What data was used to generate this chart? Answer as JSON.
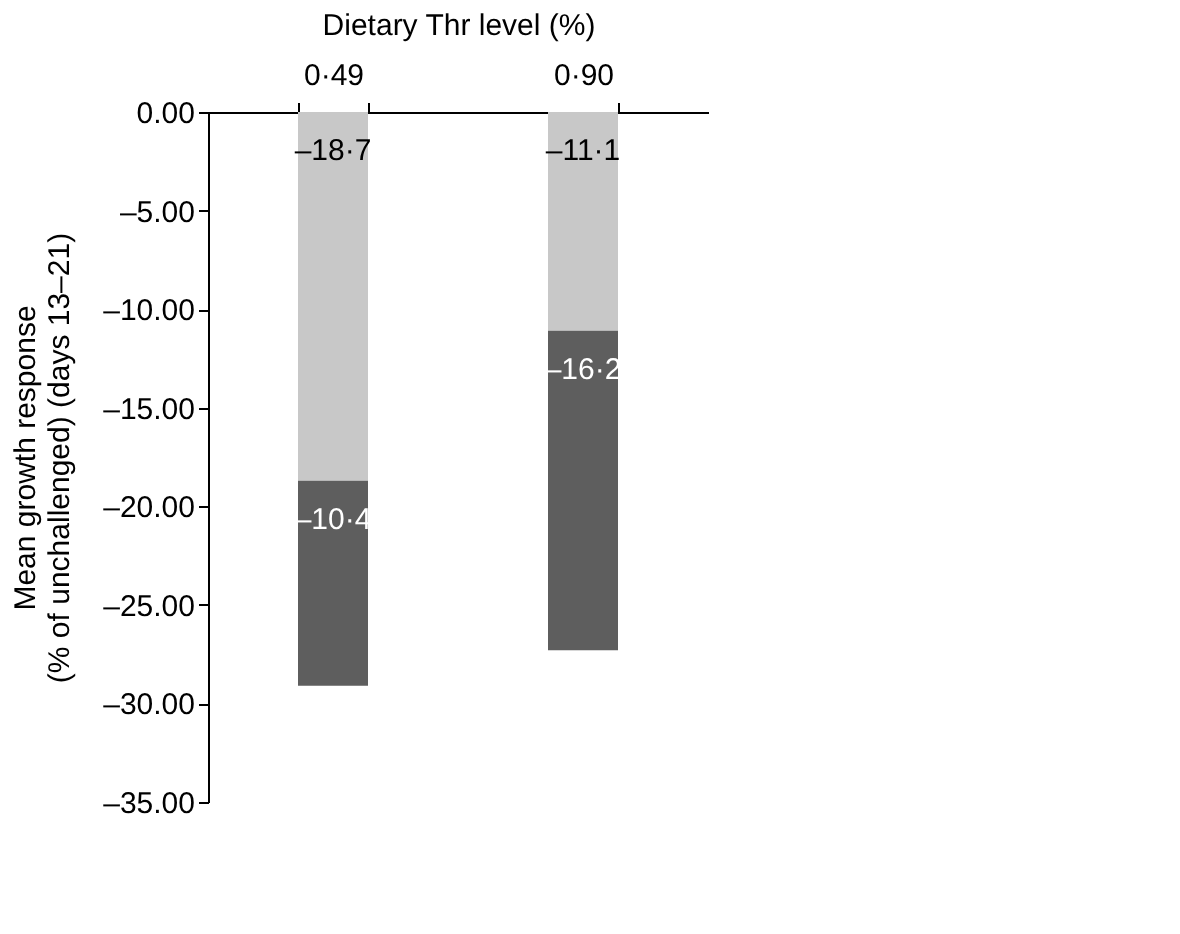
{
  "chart_data": {
    "type": "bar",
    "stacked": true,
    "xlabel": "Dietary Thr level (%)",
    "ylabel": "Mean growth response\n(% of unchallenged) (days 13–21)",
    "categories": [
      "0·49",
      "0·90"
    ],
    "series": [
      {
        "color": "#c8c8c8",
        "values": [
          -18.7,
          -11.1
        ],
        "value_labels": [
          "–18·7",
          "–11·1"
        ]
      },
      {
        "color": "#5e5e5e",
        "values": [
          -10.4,
          -16.2
        ],
        "value_labels": [
          "–10·4",
          "–16·2"
        ]
      }
    ],
    "ylim": [
      -35,
      0
    ],
    "yticks": [
      {
        "value": 0,
        "label": "0.00"
      },
      {
        "value": -5,
        "label": "–5.00"
      },
      {
        "value": -10,
        "label": "–10.00"
      },
      {
        "value": -15,
        "label": "–15.00"
      },
      {
        "value": -20,
        "label": "–20.00"
      },
      {
        "value": -25,
        "label": "–25.00"
      },
      {
        "value": -30,
        "label": "–30.00"
      },
      {
        "value": -35,
        "label": "–35.00"
      }
    ],
    "grid": false,
    "legend": false
  }
}
